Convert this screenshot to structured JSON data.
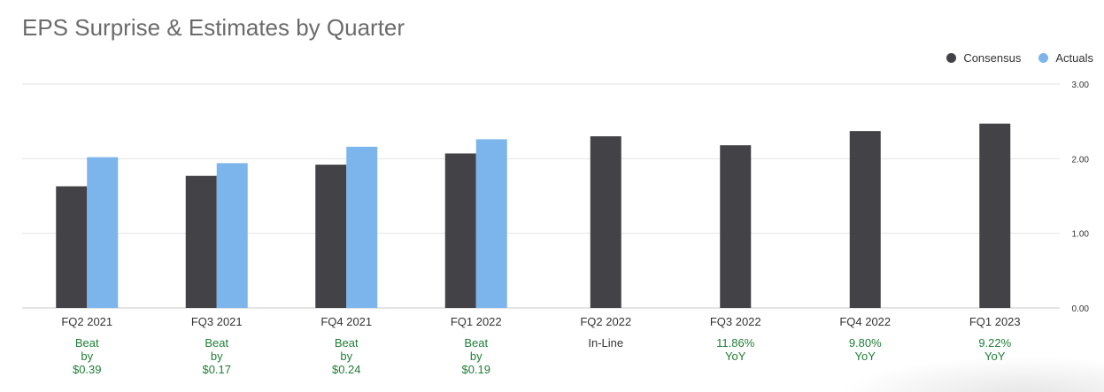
{
  "title": "EPS Surprise & Estimates by Quarter",
  "legend": [
    {
      "label": "Consensus",
      "color": "#434246"
    },
    {
      "label": "Actuals",
      "color": "#7cb5ec"
    }
  ],
  "chart_data": {
    "type": "bar",
    "title": "EPS Surprise & Estimates by Quarter",
    "categories": [
      "FQ2 2021",
      "FQ3 2021",
      "FQ4 2021",
      "FQ1 2022",
      "FQ2 2022",
      "FQ3 2022",
      "FQ4 2022",
      "FQ1 2023"
    ],
    "series": [
      {
        "name": "Consensus",
        "color": "#434246",
        "values": [
          1.63,
          1.77,
          1.92,
          2.07,
          2.3,
          2.18,
          2.37,
          2.47
        ]
      },
      {
        "name": "Actuals",
        "color": "#7cb5ec",
        "values": [
          2.02,
          1.94,
          2.16,
          2.26,
          null,
          null,
          null,
          null
        ]
      }
    ],
    "ylim": [
      0,
      3
    ],
    "yticks": [
      "0.00",
      "1.00",
      "2.00",
      "3.00"
    ],
    "y_axis_side": "right",
    "grid": true,
    "legend_position": "top-right",
    "annotations": [
      {
        "lines": [
          "Beat",
          "by",
          "$0.39"
        ],
        "color": "#1e7e34"
      },
      {
        "lines": [
          "Beat",
          "by",
          "$0.17"
        ],
        "color": "#1e7e34"
      },
      {
        "lines": [
          "Beat",
          "by",
          "$0.24"
        ],
        "color": "#1e7e34"
      },
      {
        "lines": [
          "Beat",
          "by",
          "$0.19"
        ],
        "color": "#1e7e34"
      },
      {
        "lines": [
          "In-Line"
        ],
        "color": "#333333"
      },
      {
        "lines": [
          "11.86%",
          "YoY"
        ],
        "color": "#1e7e34"
      },
      {
        "lines": [
          "9.80%",
          "YoY"
        ],
        "color": "#1e7e34"
      },
      {
        "lines": [
          "9.22%",
          "YoY"
        ],
        "color": "#1e7e34"
      }
    ]
  }
}
